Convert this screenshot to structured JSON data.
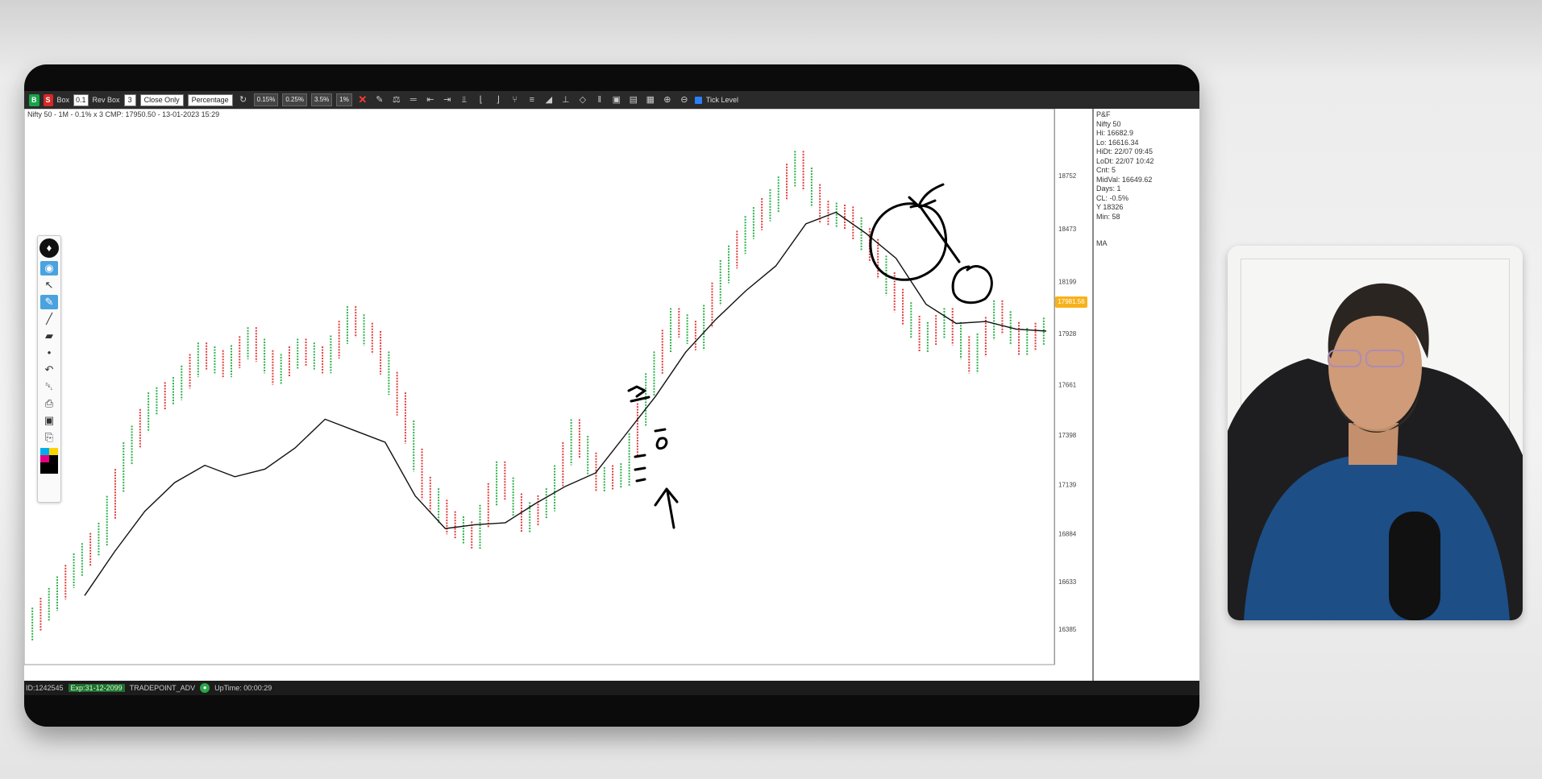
{
  "toolbar": {
    "buy_label": "B",
    "sell_label": "S",
    "box_label": "Box",
    "box_value": "0.1",
    "rev_box_label": "Rev Box",
    "rev_box_value": "3",
    "price_mode": "Close Only",
    "box_type": "Percentage",
    "pct_presets": [
      "0.15%",
      "0.25%",
      "3.5%",
      "1%"
    ],
    "tick_level_label": "Tick Level",
    "icons": [
      "refresh-icon",
      "pencil-icon",
      "ruler-icon",
      "trendline-icon",
      "arrow-left-icon",
      "arrow-right-icon",
      "split-icon",
      "bracket-left-icon",
      "bracket-right-icon",
      "fork-icon",
      "channel-icon",
      "fib-icon",
      "tick-icon",
      "eraser-icon",
      "spacing-icon",
      "box-icon",
      "panel-icon",
      "grid-icon",
      "zoom-in-icon",
      "zoom-out-icon"
    ]
  },
  "chart": {
    "info_line": "Nifty 50 - 1M - 0.1% x 3 CMP: 17950.50 - 13-01-2023 15:29",
    "price_tag": "17981.56",
    "colors": {
      "x_column": "#2bb04a",
      "o_column": "#e23b3b",
      "ma_line": "#111111",
      "annotation": "#000000"
    }
  },
  "info_panel": {
    "lines": [
      "P&F",
      "Nifty 50",
      "Hi: 16682.9",
      "Lo: 16616.34",
      "HiDt: 22/07 09:45",
      "LoDt: 22/07 10:42",
      "Cnt: 5",
      "MidVal: 16649.62",
      "Days: 1",
      "CL: -0.5%",
      "Y 18326",
      "Min: 58"
    ],
    "ma_label": "MA"
  },
  "chart_data": {
    "type": "line",
    "title": "",
    "y_axis_ticks": [
      "18752",
      "18473",
      "18199",
      "17928",
      "17661",
      "17398",
      "17139",
      "16884",
      "16633",
      "16385"
    ],
    "series": [
      {
        "values": [
          16385,
          16540,
          16720,
          16880,
          17300,
          17560,
          17640,
          17820,
          17760,
          17900,
          17720,
          17840,
          17780,
          18010,
          17880,
          17560,
          17120,
          16940,
          16860,
          17200,
          16950,
          17060,
          17420,
          17160,
          17190,
          17660,
          18000,
          17900,
          18250,
          18480,
          18620,
          18820,
          18560,
          18530,
          18360,
          18100,
          17890,
          18000,
          17780,
          18040,
          17870,
          17950
        ]
      },
      {
        "values": [
          16560,
          16790,
          17000,
          17150,
          17240,
          17180,
          17220,
          17330,
          17480,
          17420,
          17360,
          17080,
          16910,
          16930,
          16940,
          17040,
          17130,
          17200,
          17400,
          17600,
          17830,
          18000,
          18150,
          18280,
          18500,
          18560,
          18450,
          18320,
          18080,
          17980,
          17990,
          17950,
          17940
        ]
      }
    ]
  },
  "tool_palette": {
    "tools": [
      "eye-icon",
      "cursor-icon",
      "eraser-tool-icon",
      "pen-icon",
      "highlighter-icon",
      "dot-icon",
      "undo-icon",
      "trash-icon",
      "print-icon",
      "camera-icon",
      "clipboard-icon"
    ],
    "swatches": [
      "#00aeef",
      "#ffd400",
      "#e6007e",
      "#000000"
    ]
  },
  "statusbar": {
    "id": "ID:1242545",
    "expiry": "Exp:31-12-2099",
    "product": "TRADEPOINT_ADV",
    "uptime": "UpTime: 00:00:29"
  }
}
